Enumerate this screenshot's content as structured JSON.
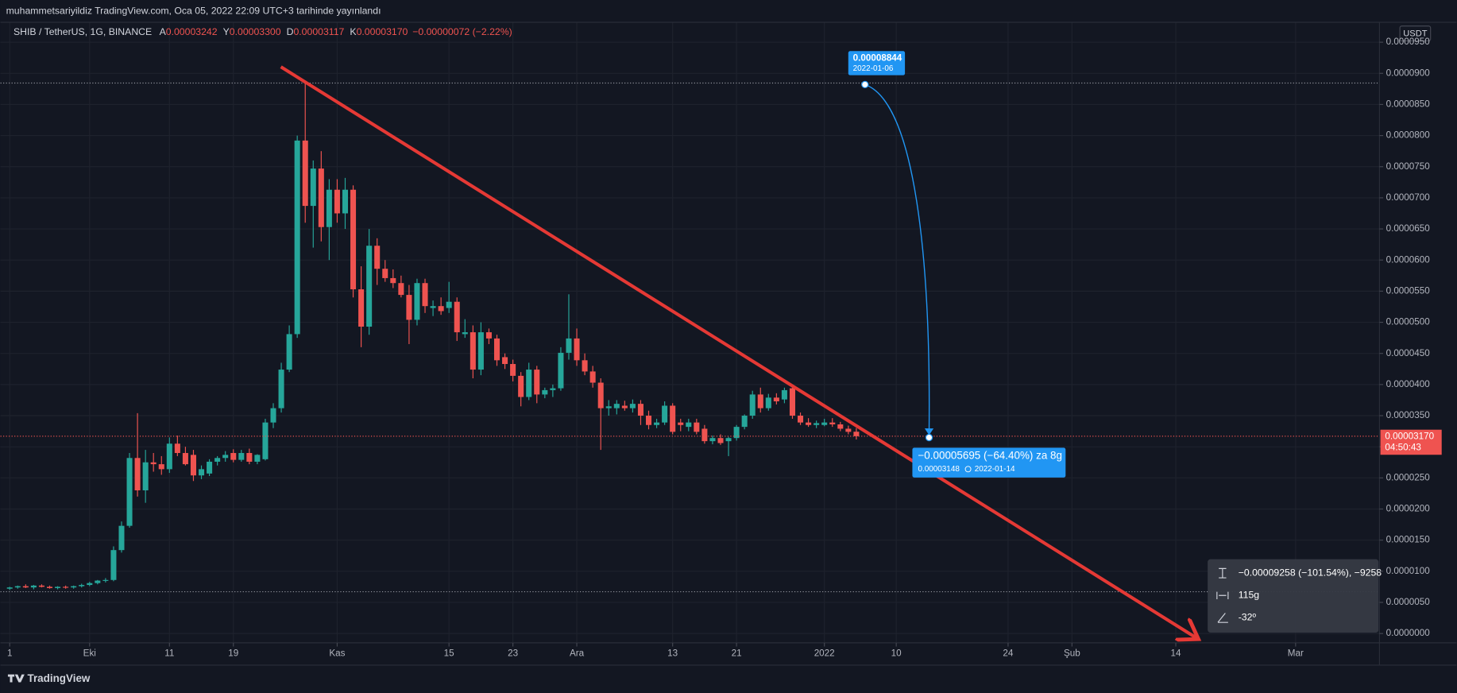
{
  "header": {
    "publisher": "muhammetsariyildiz TradingView.com, Oca 05, 2022 22:09 UTC+3 tarihinde yayınlandı"
  },
  "chart_data": {
    "type": "candlestick",
    "title": "SHIB / TetherUS, 1G, BINANCE",
    "legend_values": [
      {
        "label": "A",
        "value": "0.00003242"
      },
      {
        "label": "Y",
        "value": "0.00003300"
      },
      {
        "label": "D",
        "value": "0.00003117"
      },
      {
        "label": "K",
        "value": "0.00003170"
      }
    ],
    "legend_change": "−0.00000072 (−2.22%)",
    "currency": "USDT",
    "last_price_label": "0.00003170",
    "countdown": "04:50:43",
    "up_color": "#26a69a",
    "down_color": "#ef5350",
    "grid": true,
    "xlim": [
      -1.16,
      171.5
    ],
    "xticks": [
      {
        "value": 0,
        "label": "1"
      },
      {
        "value": 10,
        "label": "Eki"
      },
      {
        "value": 20,
        "label": "11"
      },
      {
        "value": 28,
        "label": "19"
      },
      {
        "value": 41,
        "label": "Kas"
      },
      {
        "value": 55,
        "label": "15"
      },
      {
        "value": 63,
        "label": "23"
      },
      {
        "value": 71,
        "label": "Ara"
      },
      {
        "value": 83,
        "label": "13"
      },
      {
        "value": 91,
        "label": "21"
      },
      {
        "value": 102,
        "label": "2022"
      },
      {
        "value": 111,
        "label": "10"
      },
      {
        "value": 125,
        "label": "24"
      },
      {
        "value": 133,
        "label": "Şub"
      },
      {
        "value": 146,
        "label": "14"
      },
      {
        "value": 161,
        "label": "Mar"
      }
    ],
    "ylim": [
      -1.5e-06,
      9.82e-05
    ],
    "yticks": [
      {
        "value": 0,
        "label": "0.0000000"
      },
      {
        "value": 5e-06,
        "label": "0.0000050"
      },
      {
        "value": 1e-05,
        "label": "0.0000100"
      },
      {
        "value": 1.5e-05,
        "label": "0.0000150"
      },
      {
        "value": 2e-05,
        "label": "0.0000200"
      },
      {
        "value": 2.5e-05,
        "label": "0.0000250"
      },
      {
        "value": 3e-05,
        "label": "0.0000300"
      },
      {
        "value": 3.5e-05,
        "label": "0.0000350"
      },
      {
        "value": 4e-05,
        "label": "0.0000400"
      },
      {
        "value": 4.5e-05,
        "label": "0.0000450"
      },
      {
        "value": 5e-05,
        "label": "0.0000500"
      },
      {
        "value": 5.5e-05,
        "label": "0.0000550"
      },
      {
        "value": 6e-05,
        "label": "0.0000600"
      },
      {
        "value": 6.5e-05,
        "label": "0.0000650"
      },
      {
        "value": 7e-05,
        "label": "0.0000700"
      },
      {
        "value": 7.5e-05,
        "label": "0.0000750"
      },
      {
        "value": 8e-05,
        "label": "0.0000800"
      },
      {
        "value": 8.5e-05,
        "label": "0.0000850"
      },
      {
        "value": 9e-05,
        "label": "0.0000900"
      },
      {
        "value": 9.5e-05,
        "label": "0.0000950"
      }
    ],
    "open": [
      7.2e-06,
      7.4e-06,
      7.6e-06,
      7.4e-06,
      7.7e-06,
      7.5e-06,
      7.3e-06,
      7.5e-06,
      7.4e-06,
      7.6e-06,
      7.8e-06,
      8.1e-06,
      8.5e-06,
      8.6e-06,
      1.34e-05,
      1.73e-05,
      2.82e-05,
      2.3e-05,
      2.75e-05,
      2.72e-05,
      2.64e-05,
      3.05e-05,
      2.9e-05,
      2.87e-05,
      2.54e-05,
      2.57e-05,
      2.76e-05,
      2.82e-05,
      2.9e-05,
      2.79e-05,
      2.9e-05,
      2.76e-05,
      2.8e-05,
      3.39e-05,
      3.62e-05,
      4.24e-05,
      4.81e-05,
      7.92e-05,
      6.87e-05,
      7.47e-05,
      6.53e-05,
      7.13e-05,
      6.75e-05,
      7.13e-05,
      5.53e-05,
      4.93e-05,
      6.23e-05,
      5.86e-05,
      5.71e-05,
      5.63e-05,
      5.44e-05,
      5.04e-05,
      5.63e-05,
      5.23e-05,
      5.26e-05,
      5.23e-05,
      5.33e-05,
      4.81e-05,
      4.84e-05,
      4.24e-05,
      4.84e-05,
      4.74e-05,
      4.44e-05,
      4.33e-05,
      4.14e-05,
      3.8e-05,
      4.24e-05,
      3.84e-05,
      3.91e-05,
      3.94e-05,
      4.51e-05,
      4.74e-05,
      4.39e-05,
      4.21e-05,
      4.03e-05,
      3.62e-05,
      3.62e-05,
      3.66e-05,
      3.62e-05,
      3.69e-05,
      3.5e-05,
      3.35e-05,
      3.39e-05,
      3.66e-05,
      3.39e-05,
      3.32e-05,
      3.39e-05,
      3.29e-05,
      3.09e-05,
      3.14e-05,
      3.09e-05,
      3.14e-05,
      3.32e-05,
      3.5e-05,
      3.84e-05,
      3.62e-05,
      3.79e-05,
      3.76e-05,
      3.94e-05,
      3.5e-05,
      3.39e-05,
      3.35e-05,
      3.35e-05,
      3.39e-05,
      3.36e-05,
      3.29e-05,
      3.242e-05
    ],
    "high": [
      7.5e-06,
      7.7e-06,
      7.9e-06,
      7.8e-06,
      7.9e-06,
      7.7e-06,
      7.6e-06,
      7.7e-06,
      7.7e-06,
      8e-06,
      8.3e-06,
      8.6e-06,
      8.9e-06,
      1.4e-05,
      1.8e-05,
      2.9e-05,
      3.54e-05,
      2.95e-05,
      2.9e-05,
      2.85e-05,
      3.15e-05,
      3.18e-05,
      3e-05,
      2.95e-05,
      2.7e-05,
      2.8e-05,
      2.85e-05,
      2.93e-05,
      2.96e-05,
      2.95e-05,
      2.97e-05,
      2.88e-05,
      3.45e-05,
      3.7e-05,
      4.35e-05,
      4.95e-05,
      8e-05,
      8.844e-05,
      7.6e-05,
      7.75e-05,
      7.3e-05,
      7.3e-05,
      7.32e-05,
      7.2e-05,
      5.9e-05,
      6.5e-05,
      6.35e-05,
      6e-05,
      5.85e-05,
      5.75e-05,
      5.6e-05,
      5.7e-05,
      5.7e-05,
      5.35e-05,
      5.4e-05,
      5.65e-05,
      5.4e-05,
      5.05e-05,
      4.95e-05,
      5e-05,
      4.9e-05,
      4.8e-05,
      4.5e-05,
      4.4e-05,
      4.2e-05,
      4.35e-05,
      4.3e-05,
      3.95e-05,
      4e-05,
      4.6e-05,
      5.45e-05,
      4.9e-05,
      4.5e-05,
      4.3e-05,
      4.1e-05,
      3.75e-05,
      3.75e-05,
      3.74e-05,
      3.76e-05,
      3.75e-05,
      3.58e-05,
      3.45e-05,
      3.73e-05,
      3.7e-05,
      3.45e-05,
      3.45e-05,
      3.45e-05,
      3.35e-05,
      3.18e-05,
      3.2e-05,
      3.16e-05,
      3.35e-05,
      3.52e-05,
      3.9e-05,
      3.95e-05,
      3.85e-05,
      3.86e-05,
      3.95e-05,
      3.96e-05,
      3.55e-05,
      3.46e-05,
      3.42e-05,
      3.45e-05,
      3.46e-05,
      3.4e-05,
      3.34e-05,
      3.3e-05
    ],
    "low": [
      7e-06,
      7.2e-06,
      7.3e-06,
      7.1e-06,
      7.4e-06,
      7.2e-06,
      7.1e-06,
      7.2e-06,
      7.2e-06,
      7.4e-06,
      7.6e-06,
      7.9e-06,
      8.2e-06,
      8.4e-06,
      1.3e-05,
      1.7e-05,
      2.2e-05,
      2.1e-05,
      2.6e-05,
      2.55e-05,
      2.58e-05,
      2.85e-05,
      2.7e-05,
      2.45e-05,
      2.48e-05,
      2.53e-05,
      2.7e-05,
      2.76e-05,
      2.75e-05,
      2.76e-05,
      2.72e-05,
      2.72e-05,
      2.78e-05,
      3.3e-05,
      3.55e-05,
      4.2e-05,
      4.75e-05,
      6.6e-05,
      6.2e-05,
      6.3e-05,
      6e-05,
      6.6e-05,
      6.5e-05,
      5.4e-05,
      4.6e-05,
      4.8e-05,
      5.6e-05,
      5.65e-05,
      5.55e-05,
      5.4e-05,
      4.65e-05,
      4.95e-05,
      5.15e-05,
      5.1e-05,
      5.12e-05,
      5.15e-05,
      4.7e-05,
      4.75e-05,
      4.1e-05,
      4.15e-05,
      4.65e-05,
      4.3e-05,
      4.25e-05,
      4.05e-05,
      3.65e-05,
      3.75e-05,
      3.7e-05,
      3.78e-05,
      3.8e-05,
      3.9e-05,
      4.4e-05,
      4.3e-05,
      4.15e-05,
      3.95e-05,
      2.95e-05,
      3.5e-05,
      3.52e-05,
      3.58e-05,
      3.55e-05,
      3.35e-05,
      3.28e-05,
      3.3e-05,
      3.35e-05,
      3.2e-05,
      3.25e-05,
      3.25e-05,
      3.2e-05,
      3.05e-05,
      3.04e-05,
      3.03e-05,
      2.85e-05,
      3.1e-05,
      3.28e-05,
      3.45e-05,
      3.55e-05,
      3.58e-05,
      3.68e-05,
      3.7e-05,
      3.45e-05,
      3.35e-05,
      3.32e-05,
      3.3e-05,
      3.33e-05,
      3.32e-05,
      3.25e-05,
      3.2e-05,
      3.117e-05
    ],
    "close": [
      7.4e-06,
      7.6e-06,
      7.4e-06,
      7.7e-06,
      7.5e-06,
      7.3e-06,
      7.5e-06,
      7.4e-06,
      7.6e-06,
      7.8e-06,
      8.1e-06,
      8.5e-06,
      8.6e-06,
      1.34e-05,
      1.73e-05,
      2.82e-05,
      2.3e-05,
      2.75e-05,
      2.72e-05,
      2.64e-05,
      3.05e-05,
      2.9e-05,
      2.72e-05,
      2.54e-05,
      2.64e-05,
      2.76e-05,
      2.82e-05,
      2.87e-05,
      2.79e-05,
      2.9e-05,
      2.76e-05,
      2.87e-05,
      3.39e-05,
      3.62e-05,
      4.24e-05,
      4.81e-05,
      7.92e-05,
      6.87e-05,
      7.47e-05,
      6.53e-05,
      7.13e-05,
      6.75e-05,
      7.13e-05,
      5.53e-05,
      4.93e-05,
      6.23e-05,
      5.86e-05,
      5.71e-05,
      5.63e-05,
      5.44e-05,
      5.04e-05,
      5.63e-05,
      5.26e-05,
      5.26e-05,
      5.18e-05,
      5.33e-05,
      4.84e-05,
      4.84e-05,
      4.24e-05,
      4.84e-05,
      4.74e-05,
      4.39e-05,
      4.33e-05,
      4.14e-05,
      3.8e-05,
      4.24e-05,
      3.84e-05,
      3.91e-05,
      3.94e-05,
      4.51e-05,
      4.74e-05,
      4.39e-05,
      4.21e-05,
      4.03e-05,
      3.62e-05,
      3.65e-05,
      3.69e-05,
      3.62e-05,
      3.69e-05,
      3.5e-05,
      3.35e-05,
      3.39e-05,
      3.66e-05,
      3.24e-05,
      3.35e-05,
      3.39e-05,
      3.24e-05,
      3.09e-05,
      3.14e-05,
      3.06e-05,
      3.14e-05,
      3.32e-05,
      3.5e-05,
      3.84e-05,
      3.62e-05,
      3.79e-05,
      3.73e-05,
      3.91e-05,
      3.5e-05,
      3.39e-05,
      3.35e-05,
      3.38e-05,
      3.39e-05,
      3.36e-05,
      3.29e-05,
      3.24e-05,
      3.17e-05
    ]
  },
  "annotations": {
    "high_callout": {
      "price": "0.00008844",
      "date": "2022-01-06"
    },
    "target_callout": {
      "change": "−0.00005695 (−64.40%) za 8g",
      "price": "0.00003148",
      "date": "2022-01-14"
    },
    "measure": {
      "price_range": "−0.00009258 (−101.54%), −9258",
      "bars": "115g",
      "angle": "-32º"
    }
  },
  "footer": {
    "brand": "TradingView"
  }
}
